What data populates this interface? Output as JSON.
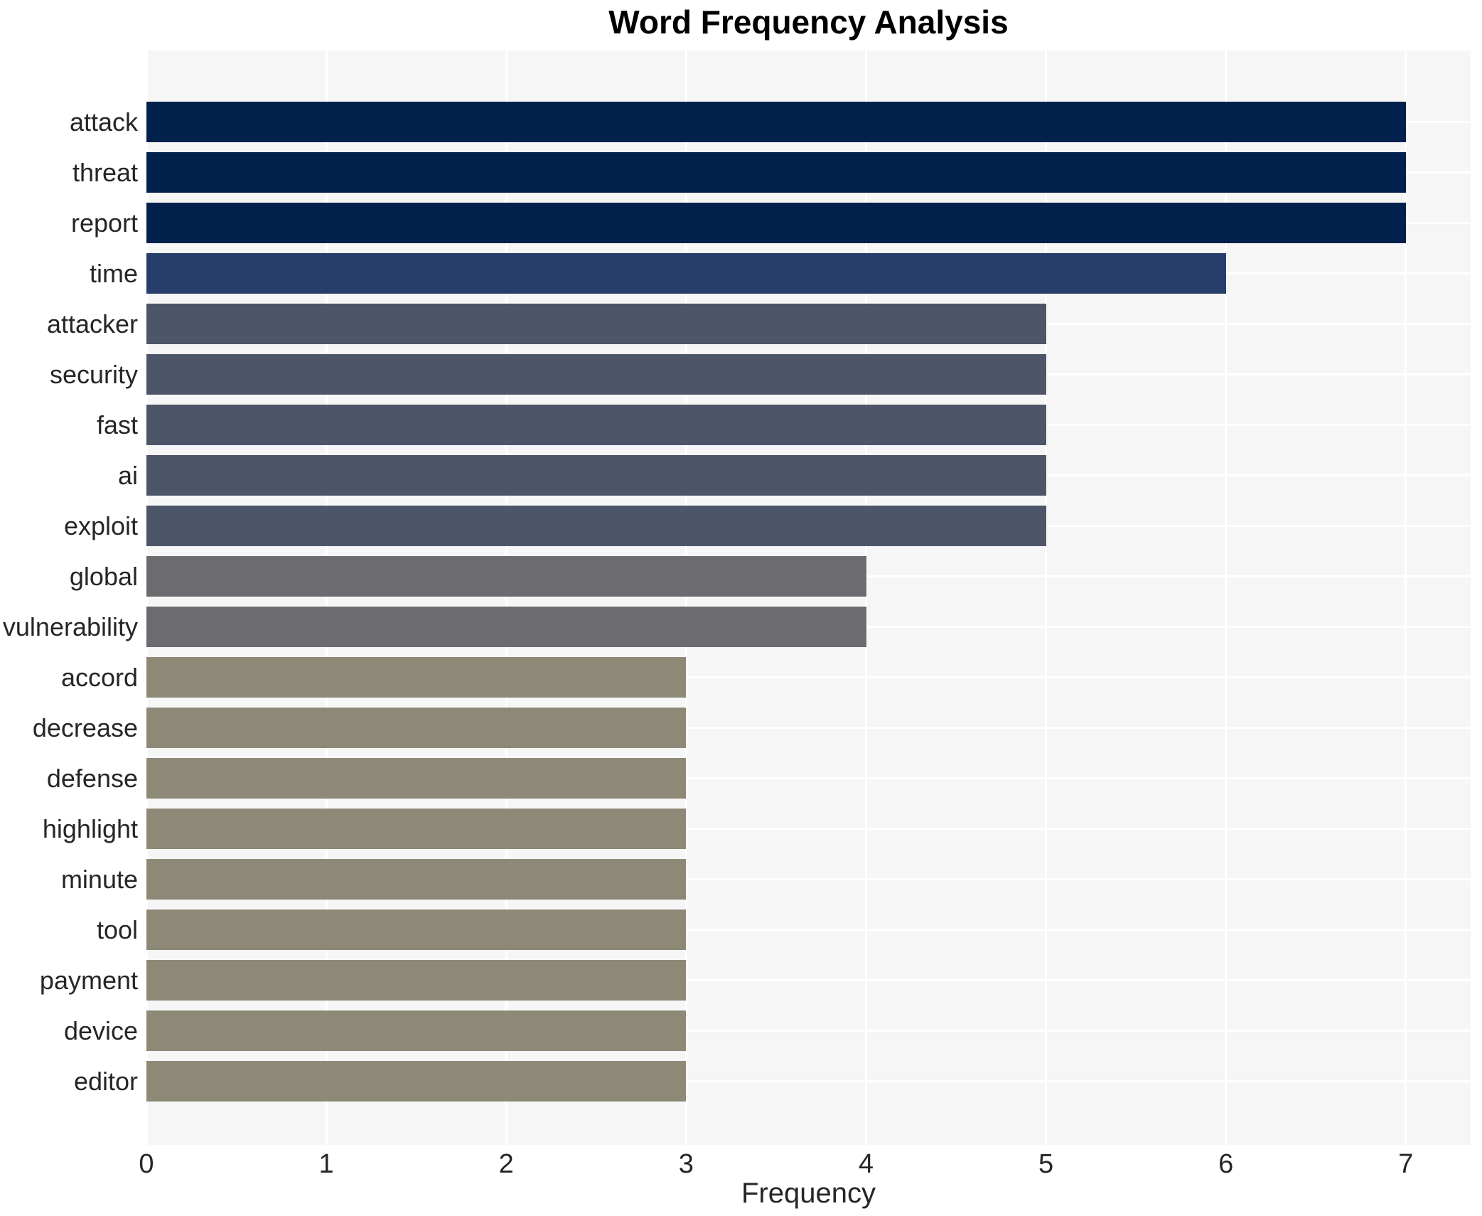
{
  "chart_data": {
    "type": "bar",
    "orientation": "horizontal",
    "title": "Word Frequency Analysis",
    "xlabel": "Frequency",
    "ylabel": "",
    "categories": [
      "attack",
      "threat",
      "report",
      "time",
      "attacker",
      "security",
      "fast",
      "ai",
      "exploit",
      "global",
      "vulnerability",
      "accord",
      "decrease",
      "defense",
      "highlight",
      "minute",
      "tool",
      "payment",
      "device",
      "editor"
    ],
    "values": [
      7,
      7,
      7,
      6,
      5,
      5,
      5,
      5,
      5,
      4,
      4,
      3,
      3,
      3,
      3,
      3,
      3,
      3,
      3,
      3
    ],
    "bar_colors": [
      "#03214d",
      "#03214d",
      "#03214d",
      "#273e6b",
      "#4d5568",
      "#4d5568",
      "#4d5568",
      "#4d5568",
      "#4d5568",
      "#6c6c70",
      "#6c6c70",
      "#8e8977",
      "#8e8977",
      "#8e8977",
      "#8e8977",
      "#8e8977",
      "#8e8977",
      "#8e8977",
      "#8e8977",
      "#8e8977"
    ],
    "xlim": [
      0,
      7.36
    ],
    "xticks": [
      0,
      1,
      2,
      3,
      4,
      5,
      6,
      7
    ],
    "grid": true,
    "legend": false,
    "colors": {
      "plot_background": "#f6f6f6",
      "figure_background": "#ffffff",
      "gridline": "#ffffff",
      "tick_text": "#262626",
      "title_text": "#000000"
    }
  }
}
